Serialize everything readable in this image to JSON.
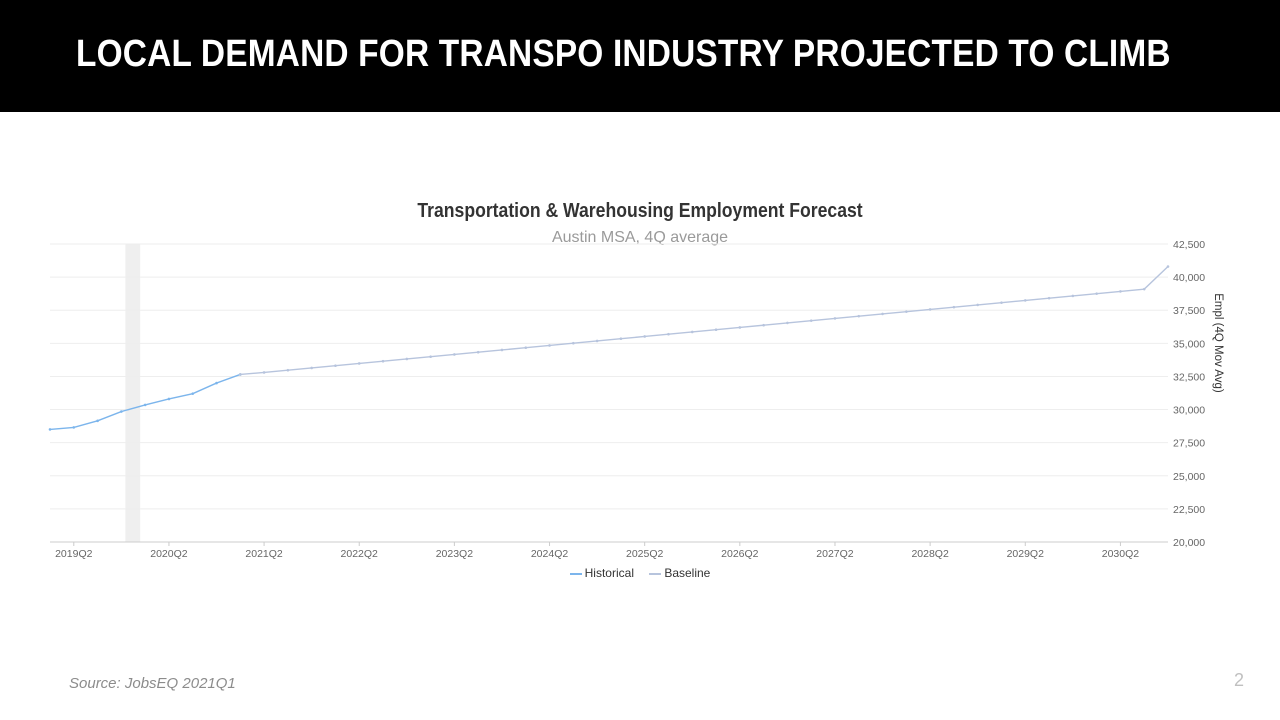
{
  "slide": {
    "title": "LOCAL DEMAND FOR TRANSPO INDUSTRY PROJECTED TO CLIMB",
    "source": "Source: JobsEQ 2021Q1",
    "page_number": "2"
  },
  "chart_data": {
    "type": "line",
    "title": "Transportation  & Warehousing Employment Forecast",
    "subtitle": "Austin MSA, 4Q average",
    "ylabel": "Empl (4Q Mov Avg)",
    "xlabel": "",
    "ylim": [
      20000,
      42500
    ],
    "yticks": [
      20000,
      22500,
      25000,
      27500,
      30000,
      32500,
      35000,
      37500,
      40000,
      42500
    ],
    "ytick_labels": [
      "20,000",
      "22,500",
      "25,000",
      "27,500",
      "30,000",
      "32,500",
      "35,000",
      "37,500",
      "40,000",
      "42,500"
    ],
    "x_start": "2019Q1",
    "x_end": "2030Q4",
    "x_tick_labels": [
      "2019Q2",
      "2020Q2",
      "2021Q2",
      "2022Q2",
      "2023Q2",
      "2024Q2",
      "2025Q2",
      "2026Q2",
      "2027Q2",
      "2028Q2",
      "2029Q2",
      "2030Q2"
    ],
    "recession_band": [
      "2019Q4",
      "2020Q1"
    ],
    "grid": true,
    "legend_position": "bottom",
    "series": [
      {
        "name": "Historical",
        "color": "#7cb5ec",
        "x": [
          "2019Q1",
          "2019Q2",
          "2019Q3",
          "2019Q4",
          "2020Q1",
          "2020Q2",
          "2020Q3",
          "2020Q4",
          "2021Q1"
        ],
        "values": [
          28500,
          28650,
          29150,
          29850,
          30350,
          30800,
          31200,
          32000,
          32650
        ]
      },
      {
        "name": "Baseline",
        "color": "#b7c4dd",
        "x": [
          "2021Q1",
          "2021Q2",
          "2021Q3",
          "2021Q4",
          "2022Q1",
          "2022Q2",
          "2022Q3",
          "2022Q4",
          "2023Q1",
          "2023Q2",
          "2023Q3",
          "2023Q4",
          "2024Q1",
          "2024Q2",
          "2024Q3",
          "2024Q4",
          "2025Q1",
          "2025Q2",
          "2025Q3",
          "2025Q4",
          "2026Q1",
          "2026Q2",
          "2026Q3",
          "2026Q4",
          "2027Q1",
          "2027Q2",
          "2027Q3",
          "2027Q4",
          "2028Q1",
          "2028Q2",
          "2028Q3",
          "2028Q4",
          "2029Q1",
          "2029Q2",
          "2029Q3",
          "2029Q4",
          "2030Q1",
          "2030Q2",
          "2030Q3",
          "2030Q4"
        ],
        "values": [
          32650,
          32800,
          32970,
          33140,
          33310,
          33480,
          33650,
          33820,
          33990,
          34160,
          34330,
          34500,
          34670,
          34840,
          35010,
          35180,
          35350,
          35520,
          35690,
          35860,
          36030,
          36200,
          36370,
          36540,
          36710,
          36880,
          37050,
          37220,
          37390,
          37560,
          37730,
          37900,
          38070,
          38240,
          38410,
          38580,
          38750,
          38920,
          39090,
          40800
        ]
      }
    ]
  }
}
